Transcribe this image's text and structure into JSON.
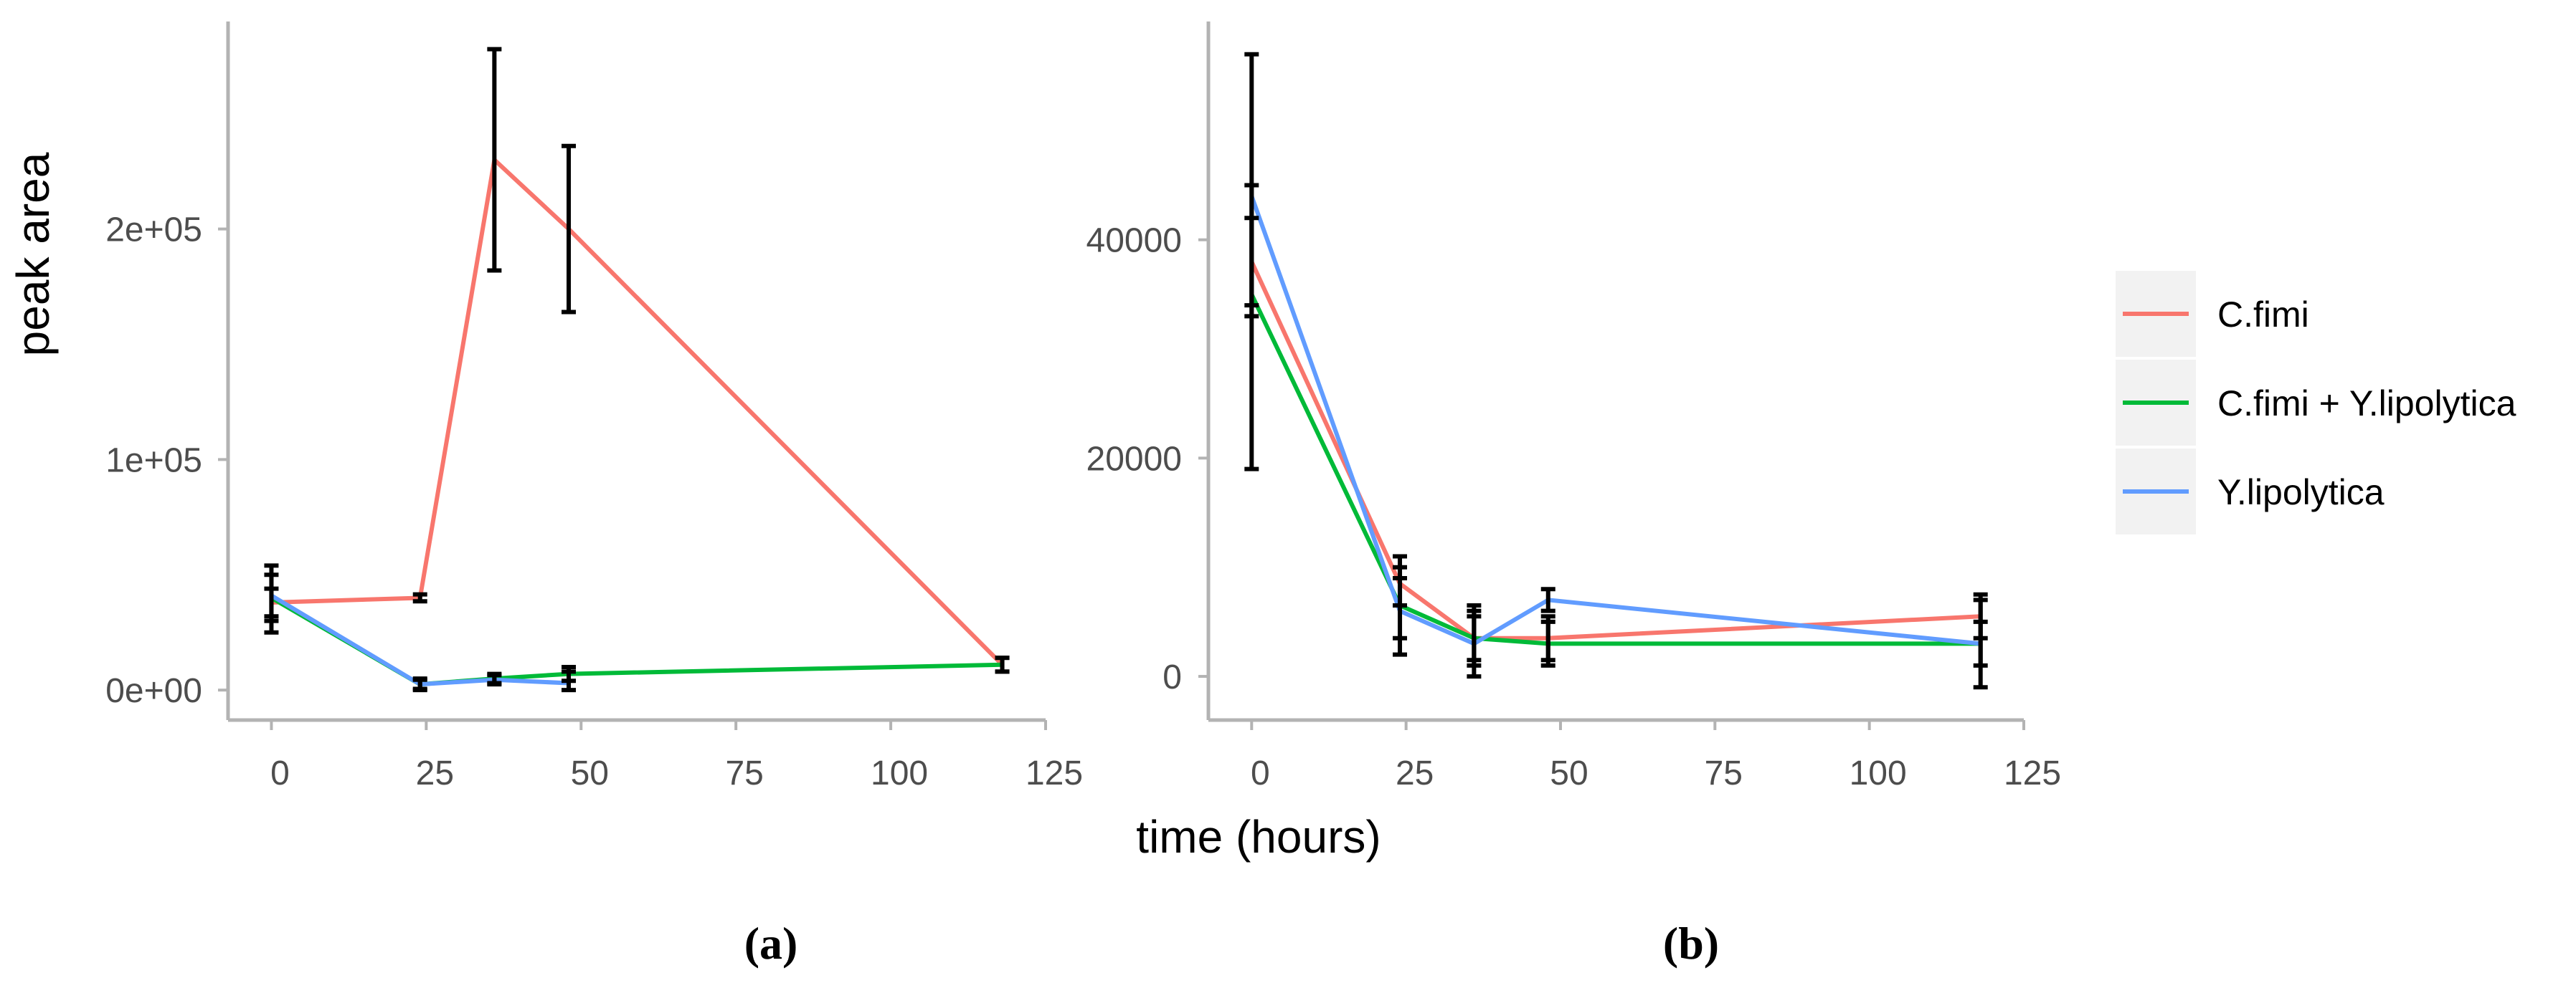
{
  "chart_data": [
    {
      "type": "line",
      "panel_label": "(a)",
      "ylabel": "peak area",
      "xlabel": "time (hours)",
      "xlim": [
        -7,
        125
      ],
      "ylim": [
        -13000,
        290000
      ],
      "x_ticks": [
        0,
        25,
        50,
        75,
        100,
        125
      ],
      "x_tick_labels": [
        "0",
        "25",
        "50",
        "75",
        "100",
        "125"
      ],
      "y_ticks": [
        0,
        100000,
        200000
      ],
      "y_tick_labels": [
        "0e+00",
        "1e+05",
        "2e+05"
      ],
      "series": [
        {
          "name": "C.fimi",
          "color": "#F8766D",
          "x": [
            0,
            24,
            36,
            48,
            118
          ],
          "y": [
            38000,
            40000,
            230000,
            200000,
            11000
          ],
          "error": [
            [
              32000,
              44000
            ],
            [
              38500,
              41500
            ],
            [
              182000,
              278000
            ],
            [
              164000,
              236000
            ],
            [
              8000,
              14000
            ]
          ]
        },
        {
          "name": "C.fimi + Y.lipolytica",
          "color": "#00BA38",
          "x": [
            0,
            24,
            36,
            48,
            118
          ],
          "y": [
            40000,
            2500,
            5000,
            7000,
            11000
          ],
          "error": [
            [
              30000,
              50000
            ],
            [
              0,
              5000
            ],
            [
              3000,
              7000
            ],
            [
              4000,
              10000
            ],
            [
              8000,
              14000
            ]
          ]
        },
        {
          "name": "Y.lipolytica",
          "color": "#619CFF",
          "x": [
            0,
            24,
            36,
            48
          ],
          "y": [
            41000,
            2500,
            4500,
            3000
          ],
          "error": [
            [
              25000,
              54000
            ],
            [
              500,
              4500
            ],
            [
              2500,
              6500
            ],
            [
              0,
              8000
            ]
          ]
        }
      ]
    },
    {
      "type": "line",
      "panel_label": "(b)",
      "ylabel": "",
      "xlabel": "time (hours)",
      "xlim": [
        -7,
        125
      ],
      "ylim": [
        -4000,
        60000
      ],
      "x_ticks": [
        0,
        25,
        50,
        75,
        100,
        125
      ],
      "x_tick_labels": [
        "0",
        "25",
        "50",
        "75",
        "100",
        "125"
      ],
      "y_ticks": [
        0,
        20000,
        40000
      ],
      "y_tick_labels": [
        "0",
        "20000",
        "40000"
      ],
      "series": [
        {
          "name": "C.fimi",
          "color": "#F8766D",
          "x": [
            0,
            24,
            36,
            48,
            118
          ],
          "y": [
            38000,
            8500,
            3500,
            3500,
            5500
          ],
          "error": [
            [
              33000,
              42000
            ],
            [
              6500,
              11000
            ],
            [
              1000,
              6000
            ],
            [
              1500,
              5500
            ],
            [
              3500,
              7500
            ]
          ]
        },
        {
          "name": "C.fimi + Y.lipolytica",
          "color": "#00BA38",
          "x": [
            0,
            24,
            36,
            48,
            118
          ],
          "y": [
            35000,
            6500,
            3500,
            3000,
            3000
          ],
          "error": [
            [
              19000,
              45000
            ],
            [
              3500,
              9000
            ],
            [
              1500,
              5500
            ],
            [
              1000,
              5000
            ],
            [
              1000,
              5000
            ]
          ]
        },
        {
          "name": "Y.lipolytica",
          "color": "#619CFF",
          "x": [
            0,
            24,
            36,
            48,
            118
          ],
          "y": [
            44000,
            6000,
            3000,
            7000,
            3000
          ],
          "error": [
            [
              34000,
              57000
            ],
            [
              2000,
              10000
            ],
            [
              0,
              6500
            ],
            [
              6000,
              8000
            ],
            [
              -1000,
              7000
            ]
          ]
        }
      ]
    }
  ],
  "legend": {
    "items": [
      {
        "label": "C.fimi",
        "color": "#F8766D"
      },
      {
        "label": "C.fimi + Y.lipolytica",
        "color": "#00BA38"
      },
      {
        "label": "Y.lipolytica",
        "color": "#619CFF"
      }
    ]
  },
  "shared_xlabel": "time (hours)",
  "shared_ylabel": "peak area",
  "panel_labels": {
    "a": "(a)",
    "b": "(b)"
  }
}
